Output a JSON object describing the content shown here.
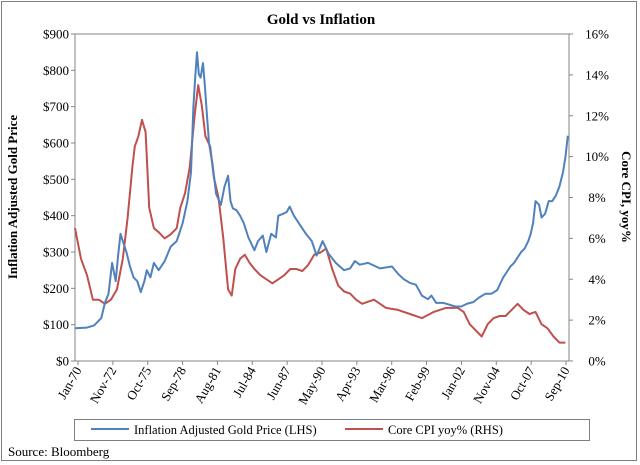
{
  "chart_data": {
    "type": "line",
    "title": "Gold vs Inflation",
    "ylabel_left": "Inflation Adjusted Gold Price",
    "ylabel_right": "Core CPI, yoy%",
    "source": "Source: Bloomberg",
    "x_ticks": [
      "Jan-70",
      "Nov-72",
      "Oct-75",
      "Sep-78",
      "Aug-81",
      "Jul-84",
      "Jun-87",
      "May-90",
      "Apr-93",
      "Mar-96",
      "Feb-99",
      "Jan-02",
      "Nov-04",
      "Oct-07",
      "Sep-10"
    ],
    "x_range": [
      1970.0,
      2011.3
    ],
    "ylim_left": [
      0,
      900
    ],
    "ylim_right": [
      0,
      16
    ],
    "y_ticks_left": [
      "$0",
      "$100",
      "$200",
      "$300",
      "$400",
      "$500",
      "$600",
      "$700",
      "$800",
      "$900"
    ],
    "y_ticks_right": [
      "0%",
      "2%",
      "4%",
      "6%",
      "8%",
      "10%",
      "12%",
      "14%",
      "16%"
    ],
    "grid": false,
    "legend_position": "bottom",
    "colors": {
      "gold": "#4f81bd",
      "cpi": "#c0504d"
    },
    "series": [
      {
        "name": "Inflation Adjusted Gold Price (LHS)",
        "axis": "left",
        "x": [
          1970.0,
          1971.0,
          1971.6,
          1972.2,
          1972.5,
          1972.8,
          1973.1,
          1973.4,
          1973.6,
          1973.8,
          1974.0,
          1974.3,
          1974.6,
          1974.9,
          1975.2,
          1975.5,
          1975.8,
          1976.0,
          1976.3,
          1976.6,
          1977.0,
          1977.5,
          1978.0,
          1978.5,
          1979.0,
          1979.4,
          1979.7,
          1979.9,
          1980.05,
          1980.2,
          1980.35,
          1980.5,
          1980.7,
          1980.85,
          1981.0,
          1981.2,
          1981.5,
          1981.8,
          1982.2,
          1982.5,
          1982.8,
          1983.0,
          1983.2,
          1983.5,
          1983.8,
          1984.1,
          1984.5,
          1985.0,
          1985.3,
          1985.7,
          1986.0,
          1986.4,
          1986.8,
          1987.0,
          1987.4,
          1987.7,
          1987.95,
          1988.3,
          1988.8,
          1989.3,
          1989.8,
          1990.2,
          1990.7,
          1991.2,
          1991.8,
          1992.5,
          1993.0,
          1993.4,
          1993.8,
          1994.5,
          1995.5,
          1996.5,
          1997.0,
          1997.5,
          1998.0,
          1998.5,
          1999.0,
          1999.5,
          1999.8,
          2000.2,
          2000.8,
          2001.3,
          2001.8,
          2002.3,
          2002.8,
          2003.3,
          2003.8,
          2004.3,
          2004.8,
          2005.3,
          2005.8,
          2006.1,
          2006.4,
          2006.7,
          2007.0,
          2007.3,
          2007.6,
          2007.9,
          2008.1,
          2008.3,
          2008.5,
          2008.8,
          2009.0,
          2009.3,
          2009.6,
          2009.9,
          2010.2,
          2010.5,
          2010.8,
          2011.0,
          2011.2
        ],
        "values": [
          90,
          92,
          98,
          118,
          160,
          185,
          270,
          220,
          290,
          350,
          330,
          300,
          260,
          230,
          220,
          190,
          220,
          250,
          230,
          270,
          250,
          275,
          315,
          330,
          380,
          440,
          520,
          700,
          780,
          850,
          790,
          780,
          820,
          760,
          690,
          600,
          540,
          460,
          430,
          480,
          510,
          440,
          420,
          415,
          400,
          380,
          340,
          305,
          330,
          345,
          300,
          350,
          340,
          400,
          405,
          410,
          425,
          400,
          375,
          350,
          330,
          290,
          330,
          295,
          270,
          250,
          255,
          275,
          265,
          270,
          255,
          260,
          240,
          225,
          215,
          210,
          180,
          170,
          180,
          160,
          160,
          155,
          150,
          150,
          158,
          162,
          175,
          185,
          185,
          195,
          230,
          245,
          260,
          270,
          285,
          300,
          310,
          330,
          350,
          380,
          440,
          430,
          395,
          405,
          440,
          440,
          455,
          480,
          520,
          560,
          620
        ]
      },
      {
        "name": "Core CPI yoy% (RHS)",
        "axis": "right",
        "x": [
          1970.0,
          1970.5,
          1971.0,
          1971.5,
          1972.0,
          1972.5,
          1973.0,
          1973.5,
          1974.0,
          1974.4,
          1974.8,
          1975.0,
          1975.3,
          1975.6,
          1975.9,
          1976.2,
          1976.6,
          1977.0,
          1977.5,
          1978.0,
          1978.5,
          1978.8,
          1979.2,
          1979.6,
          1980.0,
          1980.3,
          1980.6,
          1980.9,
          1981.3,
          1981.6,
          1982.0,
          1982.4,
          1982.8,
          1983.1,
          1983.4,
          1983.8,
          1984.2,
          1984.6,
          1985.0,
          1985.5,
          1986.0,
          1986.5,
          1987.0,
          1987.5,
          1988.0,
          1988.5,
          1989.0,
          1989.5,
          1990.0,
          1990.5,
          1991.0,
          1991.5,
          1992.0,
          1992.5,
          1993.0,
          1993.5,
          1994.0,
          1995.0,
          1996.0,
          1997.0,
          1998.0,
          1999.0,
          2000.0,
          2001.0,
          2002.0,
          2002.5,
          2003.0,
          2003.5,
          2004.0,
          2004.5,
          2005.0,
          2005.5,
          2006.0,
          2006.5,
          2007.0,
          2007.5,
          2008.0,
          2008.5,
          2009.0,
          2009.5,
          2010.0,
          2010.5,
          2011.0
        ],
        "values": [
          6.5,
          5.0,
          4.2,
          3.0,
          3.0,
          2.8,
          3.0,
          3.5,
          5.0,
          7.0,
          9.5,
          10.5,
          11.0,
          11.8,
          11.2,
          7.5,
          6.5,
          6.3,
          6.0,
          6.2,
          6.5,
          7.5,
          8.2,
          9.5,
          12.0,
          13.5,
          12.5,
          11.0,
          10.5,
          9.0,
          8.0,
          6.0,
          3.5,
          3.2,
          4.5,
          5.0,
          5.2,
          4.8,
          4.5,
          4.2,
          4.0,
          3.8,
          4.0,
          4.2,
          4.5,
          4.5,
          4.4,
          4.7,
          5.2,
          5.3,
          5.5,
          4.5,
          3.7,
          3.4,
          3.3,
          3.0,
          2.8,
          3.0,
          2.6,
          2.5,
          2.3,
          2.1,
          2.4,
          2.6,
          2.6,
          2.4,
          1.8,
          1.5,
          1.2,
          1.8,
          2.1,
          2.2,
          2.2,
          2.5,
          2.8,
          2.5,
          2.3,
          2.4,
          1.8,
          1.6,
          1.2,
          0.9,
          0.9
        ]
      }
    ]
  }
}
